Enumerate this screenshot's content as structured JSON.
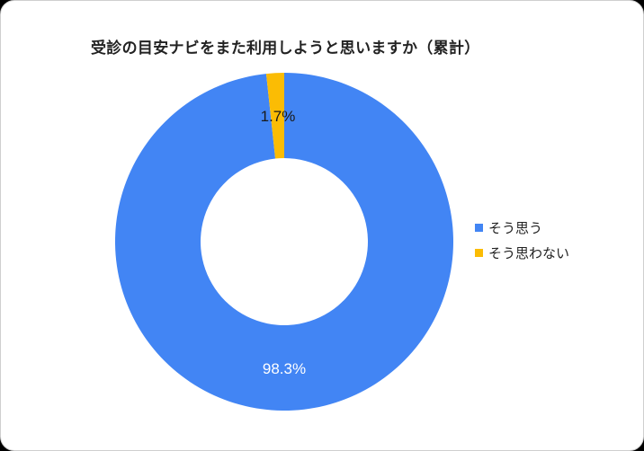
{
  "chart_data": {
    "type": "pie",
    "subtype": "donut",
    "title": "受診の目安ナビをまた利用しようと思いますか（累計）",
    "categories": [
      "そう思う",
      "そう思わない"
    ],
    "values": [
      98.3,
      1.7
    ],
    "data_labels": [
      "98.3%",
      "1.7%"
    ],
    "colors": [
      "#4285F4",
      "#FBBC04"
    ],
    "legend_position": "right",
    "start_angle_deg": 0,
    "direction": "clockwise"
  },
  "labels": {
    "major": "98.3%",
    "minor": "1.7%"
  },
  "legend": {
    "items": [
      {
        "label": "そう思う",
        "color": "#4285F4"
      },
      {
        "label": "そう思わない",
        "color": "#FBBC04"
      }
    ]
  }
}
